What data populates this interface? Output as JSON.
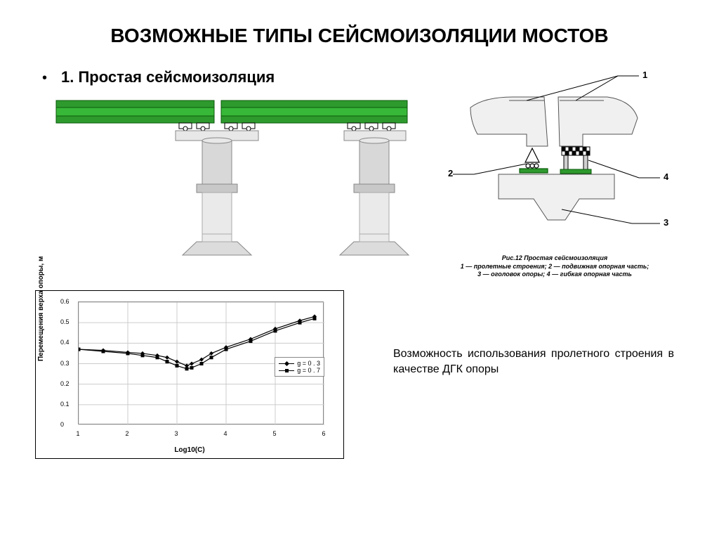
{
  "title": "ВОЗМОЖНЫЕ ТИПЫ СЕЙСМОИЗОЛЯЦИИ МОСТОВ",
  "subtitle": "1. Простая сейсмоизоляция",
  "bridge_diagram": {
    "beam_color": "#2e9a2e",
    "beam_outline": "#0a5a0a",
    "pier_fill": "#e8e8e8",
    "pier_stroke": "#888888",
    "foundation_fill": "#dcdcdc",
    "cylinder_fill": "#d0d0d0",
    "cylinder_edge": "#888888",
    "bearing_fill": "#ffffff",
    "bearing_stroke": "#000000"
  },
  "detail_diagram": {
    "labels": [
      "1",
      "2",
      "3",
      "4"
    ],
    "caption_title": "Рис.12 Простая сейсмоизоляция",
    "caption_line1": "1 — пролетные строения; 2 — подвижная опорная часть;",
    "caption_line2": "3 — оголовок опоры; 4 — гибкая опорная часть",
    "concrete_fill": "#f0f0f0",
    "concrete_stroke": "#555555",
    "bearing_pad_fill": "#2e9a2e",
    "checker_fill": "#000000"
  },
  "chart": {
    "type": "line",
    "xlabel": "Log10(C)",
    "ylabel": "Перемещения верха опоры, м",
    "xlim": [
      1,
      6
    ],
    "ylim": [
      0,
      0.6
    ],
    "xticks": [
      1,
      2,
      3,
      4,
      5,
      6
    ],
    "yticks": [
      0,
      0.1,
      0.2,
      0.3,
      0.4,
      0.5,
      0.6
    ],
    "grid_color": "#cccccc",
    "series": [
      {
        "name": "g = 0.3",
        "marker": "diamond",
        "color": "#000000",
        "x": [
          1.0,
          1.5,
          2.0,
          2.3,
          2.6,
          2.8,
          3.0,
          3.2,
          3.3,
          3.5,
          3.7,
          4.0,
          4.5,
          5.0,
          5.5,
          5.8
        ],
        "y": [
          0.37,
          0.365,
          0.355,
          0.35,
          0.34,
          0.33,
          0.31,
          0.29,
          0.3,
          0.32,
          0.35,
          0.38,
          0.42,
          0.47,
          0.51,
          0.53
        ]
      },
      {
        "name": "g = 0.7",
        "marker": "square",
        "color": "#000000",
        "x": [
          1.0,
          1.5,
          2.0,
          2.3,
          2.6,
          2.8,
          3.0,
          3.2,
          3.3,
          3.5,
          3.7,
          4.0,
          4.5,
          5.0,
          5.5,
          5.8
        ],
        "y": [
          0.37,
          0.36,
          0.35,
          0.34,
          0.33,
          0.31,
          0.29,
          0.275,
          0.28,
          0.3,
          0.33,
          0.37,
          0.41,
          0.46,
          0.5,
          0.52
        ]
      }
    ],
    "legend_labels": [
      "g = 0 . 3",
      "g = 0 . 7"
    ]
  },
  "right_text": "Возможность использования пролетного строения в качестве ДГК опоры"
}
